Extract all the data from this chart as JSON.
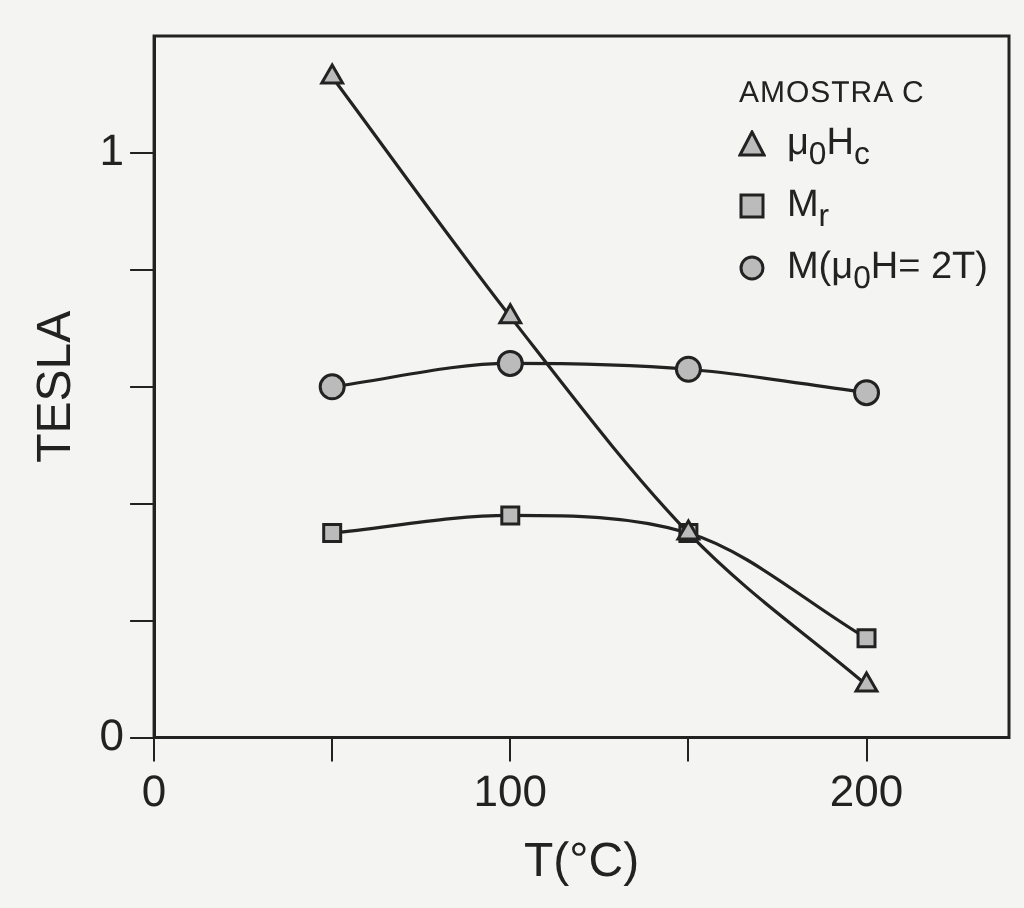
{
  "chart_data": {
    "type": "line",
    "xlabel": "T(°C)",
    "ylabel": "TESLA",
    "legend_title": "AMOSTRA C",
    "legend": "top right",
    "grid": false,
    "line_style": "solid",
    "xlim": [
      0,
      240
    ],
    "xticks": [
      0,
      {
        "value": 50,
        "label": null
      },
      100,
      {
        "value": 150,
        "label": null
      },
      200
    ],
    "ylim": [
      0,
      1.2
    ],
    "yticks": [
      0,
      {
        "value": 0.2,
        "label": null
      },
      {
        "value": 0.4,
        "label": null
      },
      {
        "value": 0.6,
        "label": null
      },
      {
        "value": 0.8,
        "label": null
      },
      1
    ],
    "x": [
      50,
      100,
      150,
      200
    ],
    "series": [
      {
        "name": "μ$_{0}$H$_{c}$",
        "color": "#222222",
        "marker": "triangle",
        "values": [
          1.13,
          0.72,
          0.35,
          0.09
        ]
      },
      {
        "name": "M$_{r}$",
        "color": "#222222",
        "marker": "square",
        "values": [
          0.35,
          0.38,
          0.35,
          0.17
        ]
      },
      {
        "name": "M(μ$_{0}$H= 2T)",
        "color": "#222222",
        "marker": "circle",
        "values": [
          0.6,
          0.64,
          0.63,
          0.59
        ]
      }
    ]
  }
}
